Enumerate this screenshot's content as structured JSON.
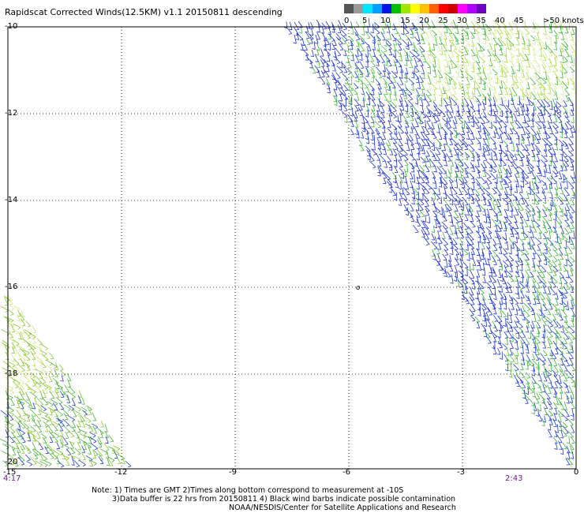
{
  "title": "Rapidscat Corrected Winds(12.5KM) v1.1 20150811 descending",
  "legend": {
    "colors": [
      "#555555",
      "#9a9a9a",
      "#00e6ff",
      "#00a0ff",
      "#0014e6",
      "#00c000",
      "#a0e600",
      "#ffff00",
      "#ffc000",
      "#ff6000",
      "#ff0000",
      "#d00000",
      "#ff00ff",
      "#b000ff",
      "#7000c0"
    ],
    "labels": [
      "0",
      "5",
      "10",
      "15",
      "20",
      "25",
      "30",
      "35",
      "40",
      "45"
    ],
    "overflow_label": ">50 knots"
  },
  "map": {
    "y_ticks": [
      "-10",
      "-12",
      "-14",
      "-16",
      "-18",
      "-20"
    ],
    "x_ticks": [
      "-15",
      "-12",
      "-9",
      "-6",
      "-3",
      "0"
    ],
    "lat_range": [
      -20,
      -10
    ],
    "lon_range": [
      -15,
      0
    ],
    "time_left": "4:17",
    "time_right": "2:43",
    "island_glyph": "o"
  },
  "notes": {
    "line1": "Note: 1) Times are GMT 2)Times along bottom correspond to measurement at -10S",
    "line2": "3)Data buffer is 22 hrs from 20150811 4) Black wind barbs indicate possible contamination",
    "line3": "NOAA/NESDIS/Center for Satellite Applications and Research"
  }
}
